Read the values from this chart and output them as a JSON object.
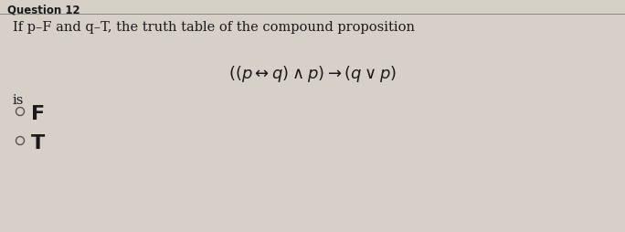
{
  "title": "Question 12",
  "line1": "If p–F and q–T, the truth table of the compound proposition",
  "is_label": "is",
  "option_f": "F",
  "option_t": "T",
  "bg_color": "#d6d0c8",
  "text_color": "#1a1a1a",
  "title_fontsize": 8.5,
  "body_fontsize": 10.5,
  "formula_fontsize": 13,
  "option_fontsize": 15,
  "fig_width": 6.84,
  "fig_height": 2.55,
  "dpi": 100
}
